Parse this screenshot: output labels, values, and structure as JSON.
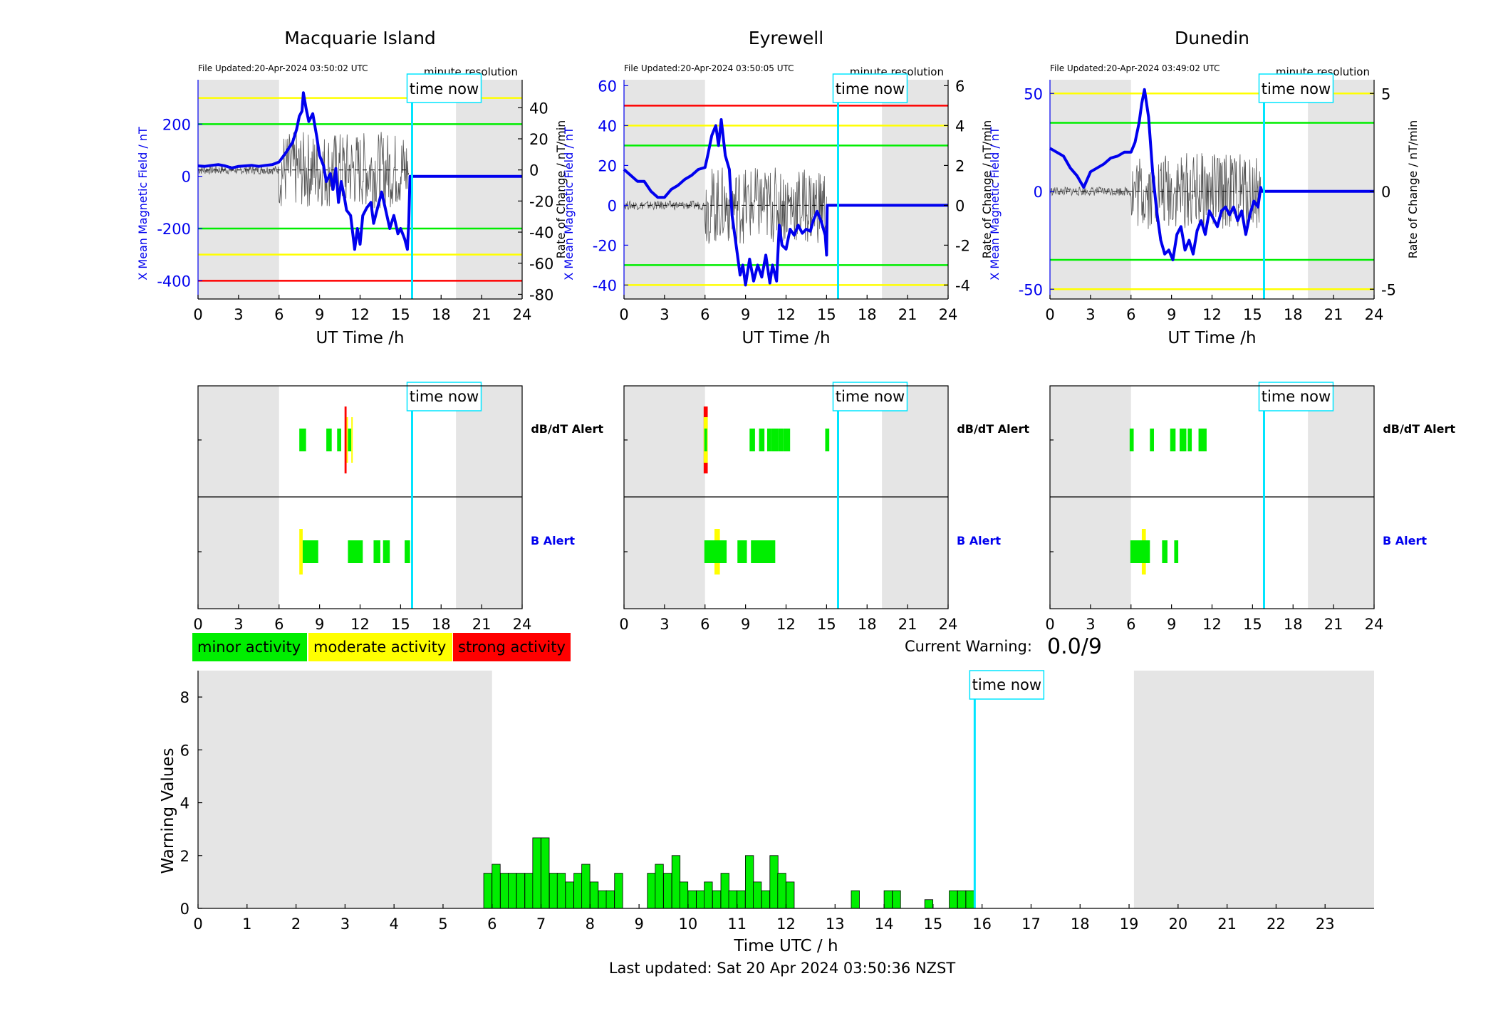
{
  "common": {
    "time_now_label": "time now",
    "time_now_hour": 15.85,
    "night_start_hour": 6,
    "night_end_hour": 19.1,
    "colors": {
      "minor": "#00ee00",
      "moderate": "#ffff00",
      "strong": "#ff0000",
      "field": "#0000ee",
      "now": "#00e5ff",
      "night": "#e5e5e5"
    }
  },
  "top_x_ticks": [
    0,
    3,
    6,
    9,
    12,
    15,
    18,
    21,
    24
  ],
  "top_xlabel": "UT Time /h",
  "left_ylabel": "X Mean Magnetic Field / nT",
  "right_ylabel": "Rate of Change / nT/min",
  "resolution_label": "minute resolution",
  "alert_labels": {
    "dbdt": "dB/dT Alert",
    "b": "B Alert"
  },
  "legend": [
    {
      "label": "minor activity",
      "color": "#00ee00"
    },
    {
      "label": "moderate activity",
      "color": "#ffff00"
    },
    {
      "label": "strong activity",
      "color": "#ff0000"
    }
  ],
  "current_warning": {
    "label": "Current Warning:",
    "value": "0.0/9"
  },
  "footer": {
    "last_updated": "Last updated: Sat 20 Apr 2024 03:50:36 NZST"
  },
  "stations": [
    {
      "name": "Macquarie Island",
      "file_updated": "File Updated:20-Apr-2024 03:50:02 UTC",
      "field_ylim": [
        -470,
        370
      ],
      "field_ticks": [
        -400,
        -200,
        0,
        200
      ],
      "rate_ylim": [
        -83,
        58
      ],
      "rate_ticks": [
        -80,
        -60,
        -40,
        -20,
        0,
        20,
        40
      ],
      "thresholds": [
        {
          "value": 300,
          "color": "yellow"
        },
        {
          "value": 200,
          "color": "green"
        },
        {
          "value": -200,
          "color": "green"
        },
        {
          "value": -300,
          "color": "yellow"
        },
        {
          "value": -400,
          "color": "red"
        }
      ],
      "field_series": [
        [
          0,
          40
        ],
        [
          0.5,
          38
        ],
        [
          1,
          42
        ],
        [
          1.5,
          45
        ],
        [
          2,
          40
        ],
        [
          2.5,
          32
        ],
        [
          3,
          38
        ],
        [
          3.5,
          40
        ],
        [
          4,
          42
        ],
        [
          4.5,
          38
        ],
        [
          5,
          42
        ],
        [
          5.5,
          45
        ],
        [
          6,
          55
        ],
        [
          6.5,
          90
        ],
        [
          7,
          130
        ],
        [
          7.3,
          180
        ],
        [
          7.5,
          230
        ],
        [
          7.7,
          250
        ],
        [
          7.8,
          320
        ],
        [
          8,
          260
        ],
        [
          8.2,
          210
        ],
        [
          8.5,
          240
        ],
        [
          8.8,
          150
        ],
        [
          9,
          80
        ],
        [
          9.3,
          40
        ],
        [
          9.5,
          -20
        ],
        [
          9.8,
          10
        ],
        [
          10,
          -50
        ],
        [
          10.2,
          30
        ],
        [
          10.4,
          -100
        ],
        [
          10.6,
          -20
        ],
        [
          10.8,
          -70
        ],
        [
          11,
          -130
        ],
        [
          11.3,
          -150
        ],
        [
          11.6,
          -280
        ],
        [
          11.8,
          -200
        ],
        [
          12,
          -260
        ],
        [
          12.2,
          -150
        ],
        [
          12.5,
          -120
        ],
        [
          12.8,
          -100
        ],
        [
          13,
          -180
        ],
        [
          13.3,
          -120
        ],
        [
          13.6,
          -60
        ],
        [
          13.9,
          -130
        ],
        [
          14.2,
          -200
        ],
        [
          14.5,
          -150
        ],
        [
          14.8,
          -220
        ],
        [
          15,
          -200
        ],
        [
          15.3,
          -240
        ],
        [
          15.5,
          -280
        ],
        [
          15.6,
          -180
        ],
        [
          15.7,
          0
        ],
        [
          24,
          0
        ]
      ],
      "rate_mean": 0,
      "dbdt_alerts": [
        [
          7.5,
          8.0,
          "minor"
        ],
        [
          9.5,
          9.9,
          "minor"
        ],
        [
          10.3,
          10.6,
          "minor"
        ],
        [
          10.85,
          11.0,
          "strong"
        ],
        [
          11.0,
          11.1,
          "moderate"
        ],
        [
          11.1,
          11.35,
          "minor"
        ],
        [
          11.35,
          11.45,
          "moderate"
        ]
      ],
      "b_alerts": [
        [
          7.5,
          7.75,
          "moderate"
        ],
        [
          7.75,
          8.9,
          "minor"
        ],
        [
          11.1,
          12.2,
          "minor"
        ],
        [
          13.0,
          13.5,
          "minor"
        ],
        [
          13.7,
          14.2,
          "minor"
        ],
        [
          15.3,
          15.7,
          "minor"
        ]
      ]
    },
    {
      "name": "Eyrewell",
      "file_updated": "File Updated:20-Apr-2024 03:50:05 UTC",
      "field_ylim": [
        -47,
        63
      ],
      "field_ticks": [
        -40,
        -20,
        0,
        20,
        40,
        60
      ],
      "rate_ylim": [
        -4.7,
        6.3
      ],
      "rate_ticks": [
        -4,
        -2,
        0,
        2,
        4,
        6
      ],
      "thresholds": [
        {
          "value": 50,
          "color": "red"
        },
        {
          "value": 40,
          "color": "yellow"
        },
        {
          "value": 30,
          "color": "green"
        },
        {
          "value": -30,
          "color": "green"
        },
        {
          "value": -40,
          "color": "yellow"
        }
      ],
      "field_series": [
        [
          0,
          18
        ],
        [
          0.5,
          15
        ],
        [
          1,
          12
        ],
        [
          1.5,
          12
        ],
        [
          2,
          7
        ],
        [
          2.5,
          4
        ],
        [
          3,
          4
        ],
        [
          3.5,
          8
        ],
        [
          4,
          10
        ],
        [
          4.5,
          13
        ],
        [
          5,
          15
        ],
        [
          5.5,
          18
        ],
        [
          6,
          19
        ],
        [
          6.2,
          25
        ],
        [
          6.5,
          35
        ],
        [
          6.8,
          40
        ],
        [
          7,
          30
        ],
        [
          7.2,
          43
        ],
        [
          7.5,
          25
        ],
        [
          7.8,
          18
        ],
        [
          8,
          -5
        ],
        [
          8.2,
          -15
        ],
        [
          8.4,
          -25
        ],
        [
          8.6,
          -35
        ],
        [
          8.8,
          -30
        ],
        [
          9,
          -40
        ],
        [
          9.3,
          -27
        ],
        [
          9.6,
          -38
        ],
        [
          9.9,
          -30
        ],
        [
          10.2,
          -36
        ],
        [
          10.5,
          -25
        ],
        [
          10.8,
          -39
        ],
        [
          11,
          -30
        ],
        [
          11.3,
          -38
        ],
        [
          11.5,
          -10
        ],
        [
          11.7,
          -20
        ],
        [
          12,
          -22
        ],
        [
          12.3,
          -12
        ],
        [
          12.6,
          -15
        ],
        [
          12.9,
          -10
        ],
        [
          13.2,
          -14
        ],
        [
          13.5,
          -12
        ],
        [
          13.8,
          -13
        ],
        [
          14,
          -8
        ],
        [
          14.3,
          -3
        ],
        [
          14.6,
          -8
        ],
        [
          14.9,
          -15
        ],
        [
          15.0,
          -25
        ],
        [
          15.05,
          0
        ],
        [
          24,
          0
        ]
      ],
      "rate_mean": 0,
      "dbdt_alerts": [
        [
          5.9,
          6.2,
          "strong"
        ],
        [
          5.9,
          6.2,
          "moderate"
        ],
        [
          5.95,
          6.15,
          "minor"
        ],
        [
          9.3,
          9.7,
          "minor"
        ],
        [
          10.0,
          10.4,
          "minor"
        ],
        [
          10.6,
          10.9,
          "minor"
        ],
        [
          10.9,
          11.4,
          "minor"
        ],
        [
          11.4,
          11.8,
          "minor"
        ],
        [
          11.8,
          12.3,
          "minor"
        ],
        [
          14.9,
          15.2,
          "minor"
        ]
      ],
      "b_alerts": [
        [
          6.7,
          7.1,
          "moderate"
        ],
        [
          5.95,
          7.6,
          "minor"
        ],
        [
          8.4,
          9.1,
          "minor"
        ],
        [
          9.4,
          11.2,
          "minor"
        ]
      ]
    },
    {
      "name": "Dunedin",
      "file_updated": "File Updated:20-Apr-2024 03:49:02 UTC",
      "field_ylim": [
        -55,
        57
      ],
      "field_ticks": [
        -50,
        0,
        50
      ],
      "rate_ylim": [
        -5.5,
        5.7
      ],
      "rate_ticks": [
        -5,
        0,
        5
      ],
      "thresholds": [
        {
          "value": 50,
          "color": "yellow"
        },
        {
          "value": 35,
          "color": "green"
        },
        {
          "value": -35,
          "color": "green"
        },
        {
          "value": -50,
          "color": "yellow"
        }
      ],
      "field_series": [
        [
          0,
          22
        ],
        [
          0.5,
          20
        ],
        [
          1,
          18
        ],
        [
          1.5,
          12
        ],
        [
          2,
          8
        ],
        [
          2.5,
          2
        ],
        [
          3,
          10
        ],
        [
          3.5,
          12
        ],
        [
          4,
          14
        ],
        [
          4.5,
          17
        ],
        [
          5,
          18
        ],
        [
          5.5,
          20
        ],
        [
          6,
          20
        ],
        [
          6.3,
          25
        ],
        [
          6.6,
          35
        ],
        [
          6.8,
          45
        ],
        [
          7,
          52
        ],
        [
          7.3,
          38
        ],
        [
          7.6,
          10
        ],
        [
          7.9,
          -10
        ],
        [
          8.2,
          -25
        ],
        [
          8.5,
          -32
        ],
        [
          8.8,
          -30
        ],
        [
          9.1,
          -35
        ],
        [
          9.4,
          -22
        ],
        [
          9.7,
          -18
        ],
        [
          10,
          -30
        ],
        [
          10.3,
          -25
        ],
        [
          10.6,
          -32
        ],
        [
          10.9,
          -20
        ],
        [
          11.2,
          -15
        ],
        [
          11.5,
          -22
        ],
        [
          11.8,
          -10
        ],
        [
          12.1,
          -14
        ],
        [
          12.4,
          -18
        ],
        [
          12.7,
          -10
        ],
        [
          13,
          -8
        ],
        [
          13.3,
          -12
        ],
        [
          13.6,
          -8
        ],
        [
          13.9,
          -15
        ],
        [
          14.2,
          -10
        ],
        [
          14.5,
          -22
        ],
        [
          14.8,
          -12
        ],
        [
          15.1,
          -5
        ],
        [
          15.4,
          -8
        ],
        [
          15.5,
          -3
        ],
        [
          15.6,
          2
        ],
        [
          15.7,
          0
        ],
        [
          24,
          0
        ]
      ],
      "rate_mean": 0,
      "dbdt_alerts": [
        [
          5.9,
          6.2,
          "minor"
        ],
        [
          7.4,
          7.7,
          "minor"
        ],
        [
          8.9,
          9.3,
          "minor"
        ],
        [
          9.6,
          10.1,
          "minor"
        ],
        [
          10.2,
          10.5,
          "minor"
        ],
        [
          11.0,
          11.6,
          "minor"
        ]
      ],
      "b_alerts": [
        [
          6.8,
          7.1,
          "moderate"
        ],
        [
          5.95,
          7.4,
          "minor"
        ],
        [
          8.3,
          8.7,
          "minor"
        ],
        [
          9.2,
          9.5,
          "minor"
        ]
      ]
    }
  ],
  "chart_data": {
    "type": "bar",
    "title": "",
    "xlabel": "Time UTC / h",
    "ylabel": "Warning Values",
    "xlim": [
      0,
      24
    ],
    "ylim": [
      0,
      9
    ],
    "x_ticks": [
      0,
      1,
      2,
      3,
      4,
      5,
      6,
      7,
      8,
      9,
      10,
      11,
      12,
      13,
      14,
      15,
      16,
      17,
      18,
      19,
      20,
      21,
      22,
      23
    ],
    "y_ticks": [
      0,
      2,
      4,
      6,
      8
    ],
    "bin_width_h": 0.1667,
    "x": [
      5.83,
      6.0,
      6.17,
      6.33,
      6.5,
      6.67,
      6.83,
      7.0,
      7.17,
      7.33,
      7.5,
      7.67,
      7.83,
      8.0,
      8.17,
      8.33,
      8.5,
      9.17,
      9.33,
      9.5,
      9.67,
      9.83,
      10.0,
      10.17,
      10.33,
      10.5,
      10.67,
      10.83,
      11.0,
      11.17,
      11.33,
      11.5,
      11.67,
      11.83,
      12.0,
      13.33,
      14.0,
      14.17,
      14.83,
      15.33,
      15.5,
      15.67
    ],
    "values": [
      1.33,
      1.67,
      1.33,
      1.33,
      1.33,
      1.33,
      2.67,
      2.67,
      1.33,
      1.33,
      1.0,
      1.33,
      1.67,
      1.0,
      0.67,
      0.67,
      1.33,
      1.33,
      1.67,
      1.33,
      2.0,
      1.0,
      0.67,
      0.67,
      1.0,
      0.67,
      1.33,
      0.67,
      0.67,
      2.0,
      1.0,
      0.67,
      2.0,
      1.33,
      1.0,
      0.67,
      0.67,
      0.67,
      0.33,
      0.67,
      0.67,
      0.67
    ]
  }
}
